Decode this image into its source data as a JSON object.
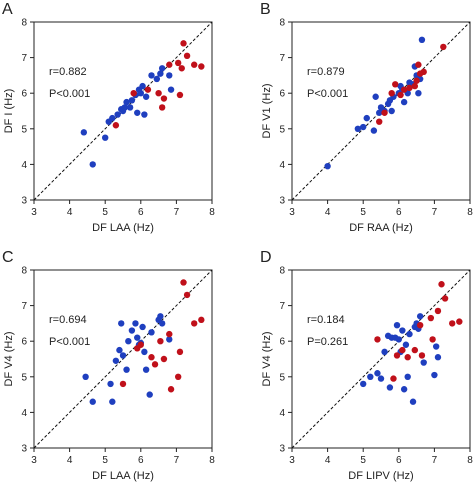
{
  "chart_data": [
    {
      "panel_label": "A",
      "type": "scatter",
      "xlabel": "DF LAA (Hz)",
      "ylabel": "DF I (Hz)",
      "xlim": [
        3,
        8
      ],
      "ylim": [
        3,
        8
      ],
      "xticks": [
        3,
        4,
        5,
        6,
        7,
        8
      ],
      "yticks": [
        3,
        4,
        5,
        6,
        7,
        8
      ],
      "grid": false,
      "identity_line": true,
      "annotations": [
        {
          "text": "r=0.882"
        },
        {
          "text": "P<0.001"
        }
      ],
      "series": [
        {
          "color": "#1f3fbf",
          "points": [
            [
              4.4,
              4.9
            ],
            [
              4.65,
              4.0
            ],
            [
              5.0,
              4.75
            ],
            [
              5.1,
              5.2
            ],
            [
              5.2,
              5.3
            ],
            [
              5.35,
              5.4
            ],
            [
              5.45,
              5.55
            ],
            [
              5.5,
              5.5
            ],
            [
              5.55,
              5.6
            ],
            [
              5.6,
              5.75
            ],
            [
              5.7,
              5.6
            ],
            [
              5.75,
              5.8
            ],
            [
              5.85,
              5.95
            ],
            [
              5.9,
              5.45
            ],
            [
              5.95,
              6.1
            ],
            [
              6.0,
              6.0
            ],
            [
              6.05,
              6.2
            ],
            [
              6.1,
              5.4
            ],
            [
              6.15,
              5.9
            ],
            [
              6.3,
              6.5
            ],
            [
              6.45,
              6.4
            ],
            [
              6.55,
              6.55
            ],
            [
              6.6,
              6.7
            ],
            [
              6.8,
              6.5
            ],
            [
              6.85,
              6.1
            ]
          ]
        },
        {
          "color": "#c0101a",
          "points": [
            [
              5.3,
              5.1
            ],
            [
              5.8,
              6.0
            ],
            [
              6.2,
              6.1
            ],
            [
              6.5,
              6.0
            ],
            [
              6.6,
              5.6
            ],
            [
              6.65,
              5.85
            ],
            [
              6.8,
              6.8
            ],
            [
              7.05,
              6.85
            ],
            [
              7.1,
              5.95
            ],
            [
              7.15,
              6.7
            ],
            [
              7.2,
              7.4
            ],
            [
              7.3,
              7.05
            ],
            [
              7.5,
              6.8
            ],
            [
              7.7,
              6.75
            ]
          ]
        }
      ]
    },
    {
      "panel_label": "B",
      "type": "scatter",
      "xlabel": "DF RAA (Hz)",
      "ylabel": "DF V1 (Hz)",
      "xlim": [
        3,
        8
      ],
      "ylim": [
        3,
        8
      ],
      "xticks": [
        3,
        4,
        5,
        6,
        7,
        8
      ],
      "yticks": [
        3,
        4,
        5,
        6,
        7,
        8
      ],
      "grid": false,
      "identity_line": true,
      "annotations": [
        {
          "text": "r=0.879"
        },
        {
          "text": "P<0.001"
        }
      ],
      "series": [
        {
          "color": "#1f3fbf",
          "points": [
            [
              4.0,
              3.95
            ],
            [
              4.85,
              5.0
            ],
            [
              5.0,
              5.05
            ],
            [
              5.1,
              5.3
            ],
            [
              5.3,
              4.95
            ],
            [
              5.35,
              5.9
            ],
            [
              5.45,
              5.45
            ],
            [
              5.5,
              5.6
            ],
            [
              5.6,
              5.5
            ],
            [
              5.7,
              5.7
            ],
            [
              5.75,
              5.8
            ],
            [
              5.8,
              5.5
            ],
            [
              5.85,
              5.9
            ],
            [
              6.0,
              6.0
            ],
            [
              6.05,
              6.2
            ],
            [
              6.1,
              6.1
            ],
            [
              6.15,
              5.75
            ],
            [
              6.25,
              6.0
            ],
            [
              6.3,
              6.3
            ],
            [
              6.4,
              6.25
            ],
            [
              6.45,
              6.75
            ],
            [
              6.5,
              6.5
            ],
            [
              6.55,
              6.0
            ],
            [
              6.6,
              6.4
            ],
            [
              6.65,
              7.5
            ]
          ]
        },
        {
          "color": "#c0101a",
          "points": [
            [
              5.45,
              5.2
            ],
            [
              5.6,
              5.45
            ],
            [
              5.8,
              6.0
            ],
            [
              5.9,
              6.25
            ],
            [
              6.05,
              5.95
            ],
            [
              6.15,
              6.1
            ],
            [
              6.3,
              6.15
            ],
            [
              6.45,
              6.2
            ],
            [
              6.5,
              6.35
            ],
            [
              6.55,
              6.8
            ],
            [
              6.6,
              6.55
            ],
            [
              6.7,
              6.6
            ],
            [
              7.25,
              7.3
            ]
          ]
        }
      ]
    },
    {
      "panel_label": "C",
      "type": "scatter",
      "xlabel": "DF LAA (Hz)",
      "ylabel": "DF V4 (Hz)",
      "xlim": [
        3,
        8
      ],
      "ylim": [
        3,
        8
      ],
      "xticks": [
        3,
        4,
        5,
        6,
        7,
        8
      ],
      "yticks": [
        3,
        4,
        5,
        6,
        7,
        8
      ],
      "grid": false,
      "identity_line": true,
      "annotations": [
        {
          "text": "r=0.694"
        },
        {
          "text": "P<0.001"
        }
      ],
      "series": [
        {
          "color": "#1f3fbf",
          "points": [
            [
              4.45,
              5.0
            ],
            [
              4.65,
              4.3
            ],
            [
              5.15,
              4.8
            ],
            [
              5.2,
              4.3
            ],
            [
              5.3,
              5.45
            ],
            [
              5.4,
              5.75
            ],
            [
              5.45,
              6.5
            ],
            [
              5.5,
              5.6
            ],
            [
              5.6,
              5.2
            ],
            [
              5.65,
              6.0
            ],
            [
              5.75,
              6.3
            ],
            [
              5.85,
              6.5
            ],
            [
              5.9,
              6.1
            ],
            [
              5.95,
              5.9
            ],
            [
              6.0,
              5.95
            ],
            [
              6.05,
              6.4
            ],
            [
              6.1,
              5.7
            ],
            [
              6.15,
              5.2
            ],
            [
              6.25,
              4.5
            ],
            [
              6.3,
              6.25
            ],
            [
              6.5,
              6.6
            ],
            [
              6.55,
              6.7
            ],
            [
              6.6,
              6.5
            ],
            [
              6.8,
              6.05
            ]
          ]
        },
        {
          "color": "#c0101a",
          "points": [
            [
              5.5,
              4.8
            ],
            [
              5.9,
              5.8
            ],
            [
              6.0,
              5.9
            ],
            [
              6.3,
              5.55
            ],
            [
              6.4,
              5.35
            ],
            [
              6.55,
              6.0
            ],
            [
              6.65,
              5.5
            ],
            [
              6.8,
              6.2
            ],
            [
              6.85,
              4.65
            ],
            [
              7.05,
              5.0
            ],
            [
              7.1,
              5.7
            ],
            [
              7.2,
              7.65
            ],
            [
              7.3,
              7.3
            ],
            [
              7.5,
              6.5
            ],
            [
              7.7,
              6.6
            ]
          ]
        }
      ]
    },
    {
      "panel_label": "D",
      "type": "scatter",
      "xlabel": "DF LIPV (Hz)",
      "ylabel": "DF V4 (Hz)",
      "xlim": [
        3,
        8
      ],
      "ylim": [
        3,
        8
      ],
      "xticks": [
        3,
        4,
        5,
        6,
        7,
        8
      ],
      "yticks": [
        3,
        4,
        5,
        6,
        7,
        8
      ],
      "grid": false,
      "identity_line": true,
      "annotations": [
        {
          "text": "r=0.184"
        },
        {
          "text": "P=0.261"
        }
      ],
      "series": [
        {
          "color": "#1f3fbf",
          "points": [
            [
              5.0,
              4.8
            ],
            [
              5.2,
              5.0
            ],
            [
              5.4,
              5.1
            ],
            [
              5.5,
              4.95
            ],
            [
              5.6,
              5.7
            ],
            [
              5.7,
              6.15
            ],
            [
              5.75,
              4.7
            ],
            [
              5.8,
              6.1
            ],
            [
              5.9,
              6.1
            ],
            [
              5.95,
              6.45
            ],
            [
              6.0,
              6.05
            ],
            [
              6.05,
              5.7
            ],
            [
              6.1,
              6.3
            ],
            [
              6.15,
              4.65
            ],
            [
              6.2,
              5.9
            ],
            [
              6.25,
              5.0
            ],
            [
              6.3,
              6.2
            ],
            [
              6.4,
              4.3
            ],
            [
              6.45,
              6.4
            ],
            [
              6.5,
              6.5
            ],
            [
              6.55,
              6.35
            ],
            [
              6.6,
              6.7
            ],
            [
              6.7,
              5.4
            ],
            [
              7.0,
              5.05
            ],
            [
              7.05,
              5.85
            ],
            [
              7.1,
              5.55
            ]
          ]
        },
        {
          "color": "#c0101a",
          "points": [
            [
              5.4,
              6.05
            ],
            [
              5.85,
              4.95
            ],
            [
              5.95,
              5.6
            ],
            [
              6.1,
              5.75
            ],
            [
              6.25,
              5.55
            ],
            [
              6.45,
              5.75
            ],
            [
              6.6,
              6.45
            ],
            [
              6.65,
              5.6
            ],
            [
              6.9,
              6.65
            ],
            [
              6.95,
              6.05
            ],
            [
              7.1,
              6.85
            ],
            [
              7.2,
              7.6
            ],
            [
              7.3,
              7.2
            ],
            [
              7.5,
              6.5
            ],
            [
              7.7,
              6.55
            ]
          ]
        }
      ]
    }
  ]
}
